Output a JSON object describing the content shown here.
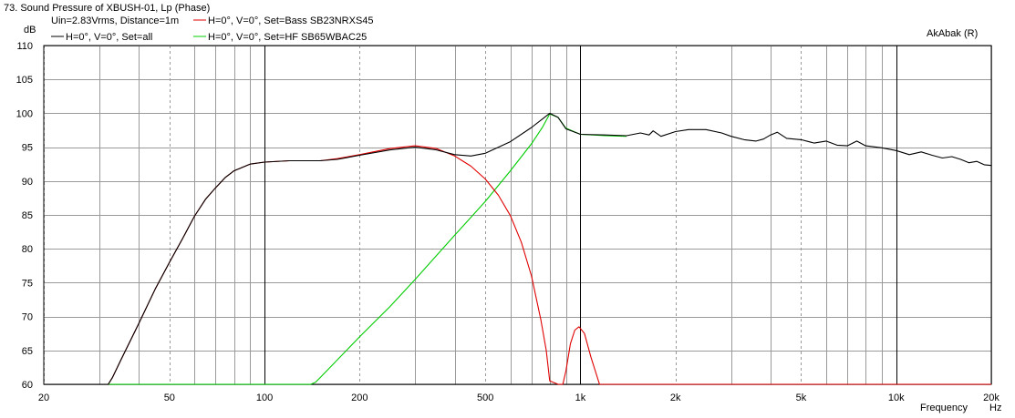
{
  "chart_data": {
    "type": "line",
    "title": "73. Sound Pressure of XBUSH-01, Lp (Phase)",
    "subtitle": "Uin=2.83Vrms, Distance=1m",
    "watermark": "AkAbak (R)",
    "ylabel": "dB",
    "xlabel": "Frequency",
    "xunit": "Hz",
    "x_scale": "log",
    "xlim": [
      20,
      20000
    ],
    "ylim": [
      60,
      110
    ],
    "grid": true,
    "x_ticks": [
      {
        "value": 20,
        "label": "20"
      },
      {
        "value": 50,
        "label": "50"
      },
      {
        "value": 100,
        "label": "100"
      },
      {
        "value": 200,
        "label": "200"
      },
      {
        "value": 500,
        "label": "500"
      },
      {
        "value": 1000,
        "label": "1k"
      },
      {
        "value": 2000,
        "label": "2k"
      },
      {
        "value": 5000,
        "label": "5k"
      },
      {
        "value": 10000,
        "label": "10k"
      },
      {
        "value": 20000,
        "label": "20k"
      }
    ],
    "y_ticks": [
      {
        "value": 110,
        "label": "110"
      },
      {
        "value": 105,
        "label": "105"
      },
      {
        "value": 100,
        "label": "100"
      },
      {
        "value": 95,
        "label": "95"
      },
      {
        "value": 90,
        "label": "90"
      },
      {
        "value": 85,
        "label": "85"
      },
      {
        "value": 80,
        "label": "80"
      },
      {
        "value": 75,
        "label": "75"
      },
      {
        "value": 70,
        "label": "70"
      },
      {
        "value": 65,
        "label": "65"
      },
      {
        "value": 60,
        "label": "60"
      }
    ],
    "series": [
      {
        "name": "H=0°, V=0°, Set=all",
        "color": "#000000",
        "points": [
          [
            20,
            60
          ],
          [
            25,
            60
          ],
          [
            32,
            60
          ],
          [
            33,
            61
          ],
          [
            35,
            63.5
          ],
          [
            40,
            69
          ],
          [
            45,
            74
          ],
          [
            50,
            78
          ],
          [
            55,
            81.5
          ],
          [
            60,
            84.8
          ],
          [
            65,
            87.3
          ],
          [
            70,
            89
          ],
          [
            75,
            90.5
          ],
          [
            80,
            91.5
          ],
          [
            90,
            92.5
          ],
          [
            100,
            92.8
          ],
          [
            120,
            93
          ],
          [
            150,
            93
          ],
          [
            170,
            93.2
          ],
          [
            200,
            93.8
          ],
          [
            250,
            94.6
          ],
          [
            300,
            95
          ],
          [
            350,
            94.6
          ],
          [
            400,
            93.9
          ],
          [
            450,
            93.7
          ],
          [
            500,
            94.1
          ],
          [
            600,
            95.8
          ],
          [
            700,
            97.9
          ],
          [
            760,
            99.2
          ],
          [
            800,
            100
          ],
          [
            850,
            99.4
          ],
          [
            900,
            97.7
          ],
          [
            1000,
            96.9
          ],
          [
            1200,
            96.8
          ],
          [
            1400,
            96.7
          ],
          [
            1550,
            97.1
          ],
          [
            1650,
            96.8
          ],
          [
            1700,
            97.4
          ],
          [
            1800,
            96.6
          ],
          [
            2000,
            97.3
          ],
          [
            2200,
            97.6
          ],
          [
            2500,
            97.6
          ],
          [
            2800,
            97.1
          ],
          [
            3000,
            96.6
          ],
          [
            3300,
            96.1
          ],
          [
            3600,
            95.9
          ],
          [
            3800,
            96.2
          ],
          [
            4000,
            96.8
          ],
          [
            4200,
            97.2
          ],
          [
            4500,
            96.3
          ],
          [
            5000,
            96.1
          ],
          [
            5500,
            95.6
          ],
          [
            6000,
            95.9
          ],
          [
            6500,
            95.3
          ],
          [
            7000,
            95.2
          ],
          [
            7500,
            95.9
          ],
          [
            8000,
            95.2
          ],
          [
            9000,
            94.9
          ],
          [
            10000,
            94.5
          ],
          [
            11000,
            93.9
          ],
          [
            12000,
            94.3
          ],
          [
            13000,
            93.8
          ],
          [
            14000,
            93.4
          ],
          [
            15000,
            93.6
          ],
          [
            16000,
            93.2
          ],
          [
            17000,
            92.7
          ],
          [
            18000,
            92.9
          ],
          [
            19000,
            92.4
          ],
          [
            20000,
            92.3
          ]
        ]
      },
      {
        "name": "H=0°, V=0°, Set=Bass SB23NRXS45",
        "color": "#e00000",
        "points": [
          [
            20,
            60
          ],
          [
            32,
            60
          ],
          [
            33,
            61
          ],
          [
            35,
            63.5
          ],
          [
            40,
            69
          ],
          [
            45,
            74
          ],
          [
            50,
            78
          ],
          [
            55,
            81.5
          ],
          [
            60,
            84.8
          ],
          [
            65,
            87.3
          ],
          [
            70,
            89
          ],
          [
            75,
            90.5
          ],
          [
            80,
            91.5
          ],
          [
            90,
            92.5
          ],
          [
            100,
            92.8
          ],
          [
            120,
            93
          ],
          [
            150,
            93
          ],
          [
            170,
            93.3
          ],
          [
            200,
            93.9
          ],
          [
            250,
            94.8
          ],
          [
            300,
            95.2
          ],
          [
            350,
            94.8
          ],
          [
            400,
            93.7
          ],
          [
            450,
            92.2
          ],
          [
            500,
            90.3
          ],
          [
            550,
            87.9
          ],
          [
            600,
            84.9
          ],
          [
            650,
            81
          ],
          [
            700,
            76
          ],
          [
            750,
            69.5
          ],
          [
            780,
            65
          ],
          [
            800,
            60.5
          ],
          [
            850,
            60
          ],
          [
            880,
            60
          ],
          [
            900,
            62
          ],
          [
            930,
            66
          ],
          [
            960,
            68
          ],
          [
            990,
            68.5
          ],
          [
            1030,
            67.5
          ],
          [
            1080,
            64
          ],
          [
            1150,
            60
          ],
          [
            1200,
            60
          ],
          [
            20000,
            60
          ]
        ]
      },
      {
        "name": "H=0°, V=0°, Set=HF SB65WBAC25",
        "color": "#00cc00",
        "points": [
          [
            20,
            60
          ],
          [
            140,
            60
          ],
          [
            145,
            60.3
          ],
          [
            150,
            61
          ],
          [
            200,
            67
          ],
          [
            250,
            71.5
          ],
          [
            300,
            75.5
          ],
          [
            400,
            82
          ],
          [
            500,
            87
          ],
          [
            600,
            91.5
          ],
          [
            700,
            95.5
          ],
          [
            760,
            98
          ],
          [
            800,
            99.9
          ],
          [
            850,
            99.4
          ],
          [
            900,
            97.8
          ],
          [
            1000,
            96.9
          ],
          [
            1200,
            96.7
          ],
          [
            1400,
            96.6
          ]
        ]
      }
    ]
  }
}
